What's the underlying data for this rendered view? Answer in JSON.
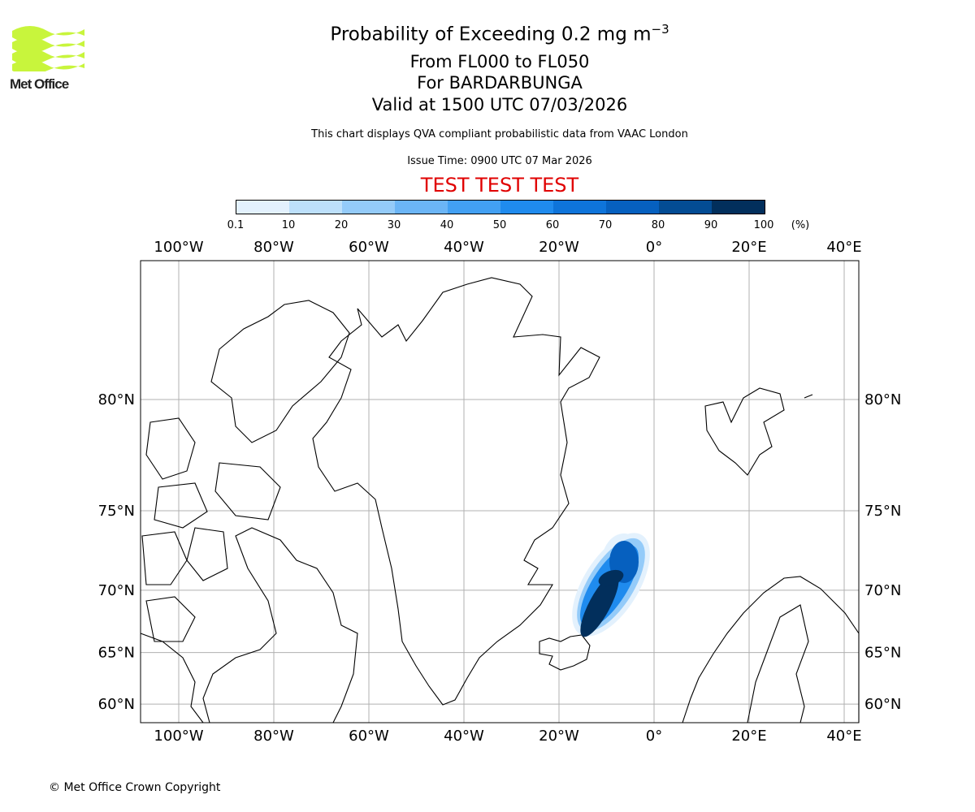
{
  "logo": {
    "text": "Met Office",
    "color": "#c8f53c"
  },
  "title": {
    "main": "Probability of Exceeding 0.2 mg m",
    "superscript": "−3",
    "line2": "From FL000 to FL050",
    "line3": "For BARDARBUNGA",
    "line4": "Valid at 1500 UTC 07/03/2026"
  },
  "description": "This chart displays QVA compliant probabilistic data from VAAC London",
  "issue_time": "Issue Time: 0900 UTC 07 Mar 2026",
  "test_banner": {
    "text": "TEST TEST TEST",
    "color": "#e00000"
  },
  "colorbar": {
    "labels": [
      "0.1",
      "10",
      "20",
      "30",
      "40",
      "50",
      "60",
      "70",
      "80",
      "90",
      "100"
    ],
    "unit": "(%)",
    "colors": [
      "#e3f1fd",
      "#bde0fb",
      "#94cbf9",
      "#6bb5f6",
      "#42a0f3",
      "#1f8bee",
      "#0e74da",
      "#0660bf",
      "#034c94",
      "#022f5c"
    ]
  },
  "map": {
    "lon_labels": [
      "100°W",
      "80°W",
      "60°W",
      "40°W",
      "20°W",
      "0°",
      "20°E",
      "40°E"
    ],
    "lon_values": [
      -100,
      -80,
      -60,
      -40,
      -20,
      0,
      20,
      40
    ],
    "lat_labels": [
      "80°N",
      "75°N",
      "70°N",
      "65°N",
      "60°N"
    ],
    "lat_values": [
      80,
      75,
      70,
      65,
      60
    ],
    "volcano": "BARDARBUNGA"
  },
  "copyright": "© Met Office Crown Copyright"
}
